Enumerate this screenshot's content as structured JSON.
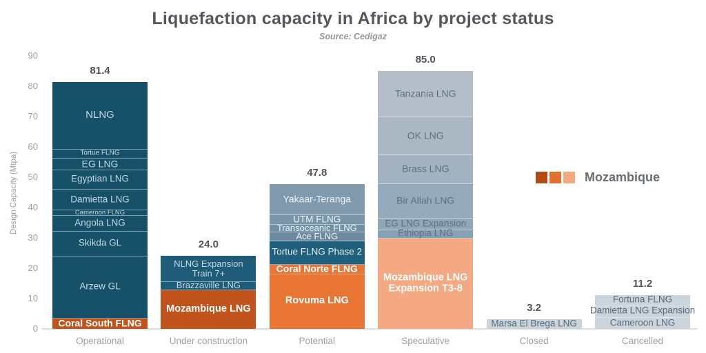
{
  "header": {
    "title": "Liquefaction capacity in Africa by project status",
    "subtitle": "Source: Cedigaz"
  },
  "y_axis": {
    "label": "Design Capacity (Mtpa)",
    "ticks": [
      0,
      10,
      20,
      30,
      40,
      50,
      60,
      70,
      80,
      90
    ]
  },
  "legend": {
    "label": "Mozambique",
    "colors": [
      "#b24a15",
      "#e2702d",
      "#f3a87d"
    ]
  },
  "chart_data": {
    "type": "bar",
    "stacked": true,
    "title": "Liquefaction capacity in Africa by project status",
    "subtitle": "Source: Cedigaz",
    "ylabel": "Design Capacity (Mtpa)",
    "ylim": [
      0,
      90
    ],
    "grid": false,
    "legend_position": "right-middle",
    "categories": [
      "Operational",
      "Under construction",
      "Potential",
      "Speculative",
      "Closed",
      "Cancelled"
    ],
    "totals": [
      81.4,
      24.0,
      47.8,
      85.0,
      3.2,
      11.2
    ],
    "bars": [
      {
        "category": "Operational",
        "total": "81.4",
        "segments": [
          {
            "label": "Coral South FLNG",
            "value": 3.4,
            "color": "#c1531d",
            "text_color": "#ffffff",
            "bold": true,
            "size": 14
          },
          {
            "label": "Arzew GL",
            "value": 20.5,
            "color": "#165069",
            "text_color": "#c3d8e2",
            "bold": false,
            "size": 13.5
          },
          {
            "label": "Skikda GL",
            "value": 8.1,
            "color": "#165069",
            "text_color": "#c3d8e2",
            "bold": false,
            "size": 13.5
          },
          {
            "label": "Angola LNG",
            "value": 5.2,
            "color": "#165069",
            "text_color": "#c3d8e2",
            "bold": false,
            "size": 13.5
          },
          {
            "label": "Cameroon FLNG",
            "value": 1.8,
            "color": "#165069",
            "text_color": "#c3d8e2",
            "bold": false,
            "size": 9.5
          },
          {
            "label": "Damietta LNG",
            "value": 6.9,
            "color": "#165069",
            "text_color": "#c3d8e2",
            "bold": false,
            "size": 13.5
          },
          {
            "label": "Egyptian LNG",
            "value": 6.4,
            "color": "#165069",
            "text_color": "#c3d8e2",
            "bold": false,
            "size": 13.5
          },
          {
            "label": "EG LNG",
            "value": 3.8,
            "color": "#165069",
            "text_color": "#c3d8e2",
            "bold": false,
            "size": 14
          },
          {
            "label": "Tortue FLNG",
            "value": 3.0,
            "color": "#165069",
            "text_color": "#c3d8e2",
            "bold": false,
            "size": 10
          },
          {
            "label": "NLNG",
            "value": 22.3,
            "color": "#165069",
            "text_color": "#c3d8e2",
            "bold": false,
            "size": 15
          }
        ]
      },
      {
        "category": "Under construction",
        "total": "24.0",
        "segments": [
          {
            "label": "Mozambique LNG",
            "value": 12.8,
            "color": "#c1531d",
            "text_color": "#ffffff",
            "bold": true,
            "size": 14.5
          },
          {
            "label": "Brazzaville LNG",
            "value": 2.6,
            "color": "#1e5c7a",
            "text_color": "#c3d8e2",
            "bold": false,
            "size": 13
          },
          {
            "label": "NLNG Expansion\nTrain 7+",
            "value": 8.6,
            "color": "#1e5c7a",
            "text_color": "#c3d8e2",
            "bold": false,
            "size": 13
          }
        ]
      },
      {
        "category": "Potential",
        "total": "47.8",
        "segments": [
          {
            "label": "Rovuma LNG",
            "value": 18.0,
            "color": "#e87534",
            "text_color": "#ffffff",
            "bold": true,
            "size": 14.5
          },
          {
            "label": "Coral Norte FLNG",
            "value": 3.2,
            "color": "#e87534",
            "text_color": "#ffffff",
            "bold": true,
            "size": 14
          },
          {
            "label": "Tortue FLNG Phase 2",
            "value": 7.7,
            "color": "#20607f",
            "text_color": "#e8f0f5",
            "bold": false,
            "size": 13.5
          },
          {
            "label": "Ace FLNG",
            "value": 3.0,
            "color": "#6b8aa0",
            "text_color": "#eef3f6",
            "bold": false,
            "size": 13
          },
          {
            "label": "Transoceanic FLNG",
            "value": 2.5,
            "color": "#7290a5",
            "text_color": "#eef3f6",
            "bold": false,
            "size": 13
          },
          {
            "label": "UTM FLNG",
            "value": 3.0,
            "color": "#7995a9",
            "text_color": "#eef3f6",
            "bold": false,
            "size": 13.5
          },
          {
            "label": "Yakaar-Teranga",
            "value": 10.4,
            "color": "#8099ad",
            "text_color": "#eef3f6",
            "bold": false,
            "size": 14
          }
        ]
      },
      {
        "category": "Speculative",
        "total": "85.0",
        "segments": [
          {
            "label": "Mozambique LNG\nExpansion T3-8",
            "value": 29.8,
            "color": "#f5a983",
            "text_color": "#ffffff",
            "bold": true,
            "size": 14.5
          },
          {
            "label": "Ethiopia LNG",
            "value": 2.7,
            "color": "#87a2b4",
            "text_color": "#5d7080",
            "bold": false,
            "size": 13.5
          },
          {
            "label": "EG LNG Expansion",
            "value": 3.9,
            "color": "#90a7b7",
            "text_color": "#5d7080",
            "bold": false,
            "size": 13.5
          },
          {
            "label": "Bir Allah LNG",
            "value": 11.3,
            "color": "#95aaba",
            "text_color": "#5d7080",
            "bold": false,
            "size": 14
          },
          {
            "label": "Brass LNG",
            "value": 9.6,
            "color": "#a3b2c0",
            "text_color": "#5d7080",
            "bold": false,
            "size": 14
          },
          {
            "label": "OK LNG",
            "value": 12.5,
            "color": "#abb8c4",
            "text_color": "#5d7080",
            "bold": false,
            "size": 14
          },
          {
            "label": "Tanzania LNG",
            "value": 15.2,
            "color": "#b3bec8",
            "text_color": "#5d7080",
            "bold": false,
            "size": 14
          }
        ]
      },
      {
        "category": "Closed",
        "total": "3.2",
        "segments": [
          {
            "label": "Marsa El Brega LNG",
            "value": 3.2,
            "color": "#cbd4db",
            "text_color": "#5a6b78",
            "bold": false,
            "size": 13.5
          }
        ]
      },
      {
        "category": "Cancelled",
        "total": "11.2",
        "segments": [
          {
            "label": "Cameroon LNG",
            "value": 3.7,
            "color": "#cbd4db",
            "text_color": "#5a6b78",
            "bold": false,
            "size": 13.5
          },
          {
            "label": "Damietta LNG Expansion",
            "value": 4.0,
            "color": "#cbd4db",
            "text_color": "#5a6b78",
            "bold": false,
            "size": 13.5
          },
          {
            "label": "Fortuna FLNG",
            "value": 3.5,
            "color": "#cbd4db",
            "text_color": "#5a6b78",
            "bold": false,
            "size": 13.5
          }
        ]
      }
    ]
  }
}
